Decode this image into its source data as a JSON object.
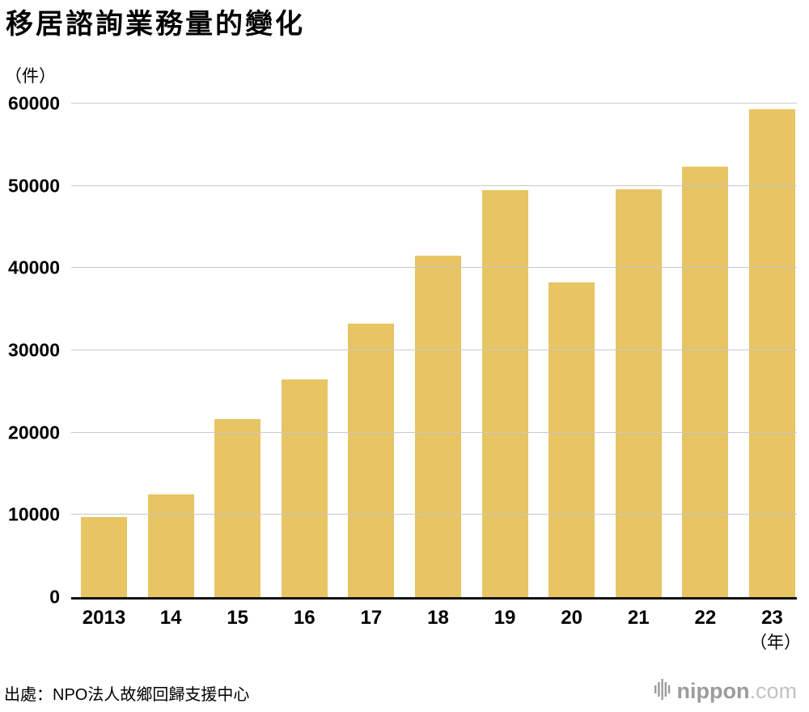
{
  "title": "移居諮詢業務量的變化",
  "y_unit": "（件）",
  "x_unit": "（年）",
  "source": "出處：NPO法人故鄉回歸支援中心",
  "logo": {
    "name": "nippon",
    "tld": ".com"
  },
  "colors": {
    "bar": "#e7c464",
    "grid": "#c9c9c9",
    "axis": "#111111",
    "logo_gray": "#9c9c9c",
    "logo_light": "#c2c2c2"
  },
  "chart_data": {
    "type": "bar",
    "title": "移居諮詢業務量的變化",
    "categories": [
      "2013",
      "14",
      "15",
      "16",
      "17",
      "18",
      "19",
      "20",
      "21",
      "22",
      "23"
    ],
    "values": [
      9700,
      12500,
      21600,
      26500,
      33200,
      41500,
      49500,
      38300,
      49600,
      52300,
      59300
    ],
    "xlabel": "（年）",
    "ylabel": "（件）",
    "ylim": [
      0,
      60000
    ],
    "yticks": [
      0,
      10000,
      20000,
      30000,
      40000,
      50000,
      60000
    ],
    "ytick_interval": 10000,
    "grid": true,
    "legend_position": "none"
  }
}
